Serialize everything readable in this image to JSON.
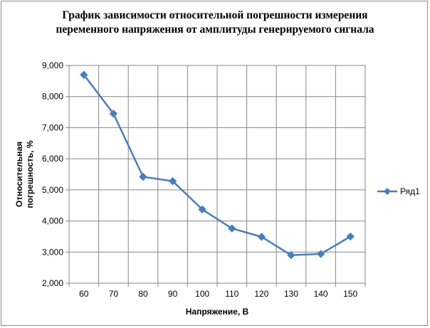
{
  "chart_data": {
    "type": "line",
    "title_lines": [
      "График зависимости относительной погрешности измерения",
      "переменного напряжения от амплитуды генерируемого сигнала"
    ],
    "xlabel": "Напряжение, В",
    "ylabel_lines": [
      "Относительная",
      "погрешность, %"
    ],
    "categories": [
      "60",
      "70",
      "80",
      "90",
      "100",
      "110",
      "120",
      "130",
      "140",
      "150"
    ],
    "ylim": [
      2,
      9
    ],
    "yticks": [
      "2,000",
      "3,000",
      "4,000",
      "5,000",
      "6,000",
      "7,000",
      "8,000",
      "9,000"
    ],
    "grid": true,
    "legend_position": "right",
    "series": [
      {
        "name": "Ряд1",
        "color": "#4a7ebb",
        "marker": "diamond",
        "values": [
          8.7,
          7.45,
          5.42,
          5.28,
          4.37,
          3.76,
          3.49,
          2.9,
          2.94,
          3.5
        ]
      }
    ]
  }
}
